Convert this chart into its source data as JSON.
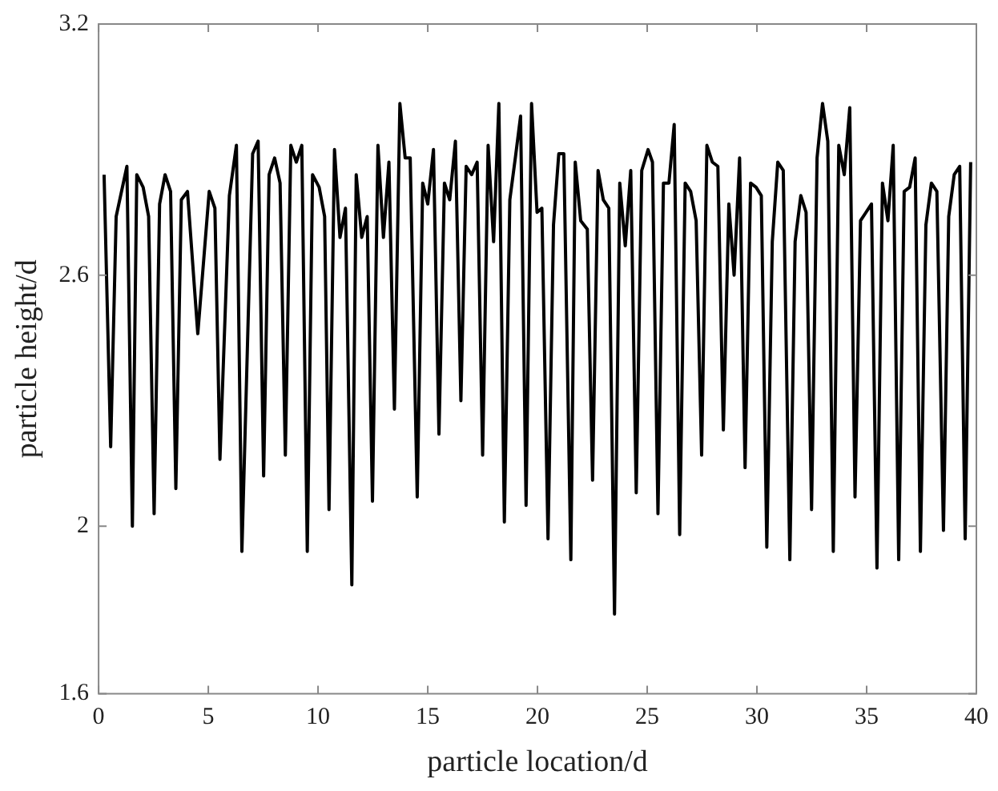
{
  "chart_data": {
    "type": "line",
    "xlabel": "particle location/d",
    "ylabel": "particle height/d",
    "xlim": [
      0,
      40
    ],
    "xticks": [
      0,
      5,
      10,
      15,
      20,
      25,
      30,
      35,
      40
    ],
    "ylim": [
      1.6,
      3.2
    ],
    "yticks": [
      1.6,
      2,
      2.6,
      3.2
    ],
    "grid": false,
    "legend": false,
    "marker": "none",
    "line_style": "solid",
    "x": [
      0.25,
      0.55,
      0.8,
      1.29,
      1.54,
      1.74,
      2.03,
      2.28,
      2.53,
      2.78,
      3.03,
      3.28,
      3.52,
      3.77,
      4.05,
      4.52,
      5.04,
      5.3,
      5.53,
      5.96,
      6.28,
      6.53,
      7.02,
      7.27,
      7.52,
      7.77,
      8.02,
      8.27,
      8.51,
      8.76,
      9.01,
      9.26,
      9.51,
      9.75,
      10.05,
      10.3,
      10.5,
      10.75,
      11.0,
      11.25,
      11.54,
      11.74,
      11.99,
      12.24,
      12.48,
      12.73,
      12.98,
      13.23,
      13.48,
      13.73,
      13.97,
      14.2,
      14.52,
      14.77,
      15.0,
      15.26,
      15.51,
      15.76,
      16.0,
      16.26,
      16.51,
      16.75,
      17.0,
      17.25,
      17.5,
      17.75,
      18.0,
      18.24,
      18.49,
      18.74,
      18.99,
      19.23,
      19.48,
      19.73,
      19.98,
      20.2,
      20.48,
      20.73,
      20.97,
      21.2,
      21.52,
      21.72,
      21.97,
      22.27,
      22.51,
      22.76,
      23.0,
      23.25,
      23.51,
      23.75,
      24.0,
      24.25,
      24.5,
      24.75,
      25.04,
      25.24,
      25.49,
      25.74,
      25.99,
      26.23,
      26.48,
      26.73,
      26.98,
      27.23,
      27.48,
      27.72,
      27.97,
      28.22,
      28.47,
      28.72,
      28.96,
      29.21,
      29.46,
      29.71,
      29.96,
      30.2,
      30.45,
      30.7,
      30.95,
      31.2,
      31.5,
      31.74,
      32.0,
      32.24,
      32.49,
      32.74,
      32.99,
      33.23,
      33.48,
      33.73,
      33.98,
      34.23,
      34.47,
      34.72,
      34.97,
      35.22,
      35.47,
      35.72,
      35.97,
      36.21,
      36.46,
      36.71,
      36.96,
      37.21,
      37.45,
      37.7,
      37.95,
      38.2,
      38.5,
      38.74,
      38.99,
      39.24,
      39.49,
      39.74
    ],
    "series": [
      {
        "color": "#000000",
        "values": [
          2.84,
          2.19,
          2.74,
          2.86,
          2.0,
          2.84,
          2.81,
          2.74,
          2.03,
          2.77,
          2.84,
          2.8,
          2.09,
          2.78,
          2.8,
          2.46,
          2.8,
          2.76,
          2.16,
          2.79,
          2.91,
          1.94,
          2.89,
          2.92,
          2.12,
          2.84,
          2.88,
          2.82,
          2.17,
          2.91,
          2.87,
          2.91,
          1.94,
          2.84,
          2.81,
          2.74,
          2.04,
          2.9,
          2.69,
          2.76,
          1.86,
          2.84,
          2.69,
          2.74,
          2.06,
          2.91,
          2.69,
          2.87,
          2.28,
          3.01,
          2.88,
          2.88,
          2.07,
          2.82,
          2.77,
          2.9,
          2.22,
          2.82,
          2.78,
          2.92,
          2.3,
          2.86,
          2.84,
          2.87,
          2.17,
          2.91,
          2.68,
          3.01,
          2.01,
          2.78,
          2.88,
          2.98,
          2.05,
          3.01,
          2.75,
          2.76,
          1.97,
          2.72,
          2.89,
          2.89,
          1.92,
          2.87,
          2.73,
          2.71,
          2.11,
          2.85,
          2.78,
          2.76,
          1.79,
          2.82,
          2.67,
          2.85,
          2.08,
          2.85,
          2.9,
          2.87,
          2.03,
          2.82,
          2.82,
          2.96,
          1.98,
          2.82,
          2.8,
          2.73,
          2.17,
          2.91,
          2.87,
          2.86,
          2.23,
          2.77,
          2.6,
          2.88,
          2.14,
          2.82,
          2.81,
          2.79,
          1.95,
          2.68,
          2.87,
          2.85,
          1.92,
          2.68,
          2.79,
          2.75,
          2.04,
          2.88,
          3.01,
          2.92,
          1.94,
          2.91,
          2.84,
          3.0,
          2.07,
          2.73,
          2.75,
          2.77,
          1.9,
          2.82,
          2.73,
          2.91,
          1.92,
          2.8,
          2.81,
          2.88,
          1.94,
          2.72,
          2.82,
          2.8,
          1.99,
          2.74,
          2.84,
          2.86,
          1.97,
          2.87
        ]
      }
    ]
  }
}
